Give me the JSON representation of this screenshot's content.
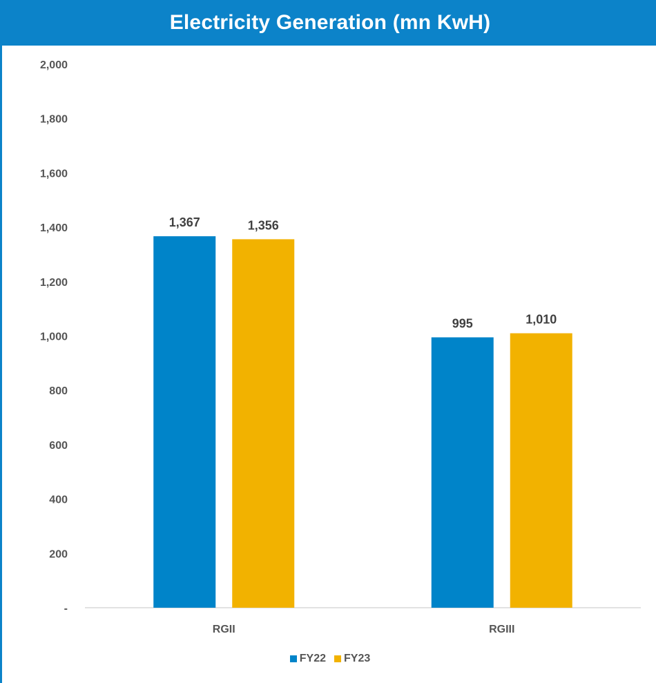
{
  "chart_data": {
    "type": "bar",
    "title": "Electricity Generation (mn KwH)",
    "categories": [
      "RGII",
      "RGIII"
    ],
    "series": [
      {
        "name": "FY22",
        "values": [
          1367,
          995
        ],
        "labels": [
          "1,367",
          "995"
        ],
        "color": "#0084c9"
      },
      {
        "name": "FY23",
        "values": [
          1356,
          1010
        ],
        "labels": [
          "1,356",
          "1,010"
        ],
        "color": "#f2b200"
      }
    ],
    "ylim": [
      0,
      2000
    ],
    "yticks": [
      {
        "value": 0,
        "label": "-"
      },
      {
        "value": 200,
        "label": "200"
      },
      {
        "value": 400,
        "label": "400"
      },
      {
        "value": 600,
        "label": "600"
      },
      {
        "value": 800,
        "label": "800"
      },
      {
        "value": 1000,
        "label": "1,000"
      },
      {
        "value": 1200,
        "label": "1,200"
      },
      {
        "value": 1400,
        "label": "1,400"
      },
      {
        "value": 1600,
        "label": "1,600"
      },
      {
        "value": 1800,
        "label": "1,800"
      },
      {
        "value": 2000,
        "label": "2,000"
      }
    ],
    "grid": false,
    "legend_position": "bottom",
    "title_background": "#0c83c9"
  }
}
